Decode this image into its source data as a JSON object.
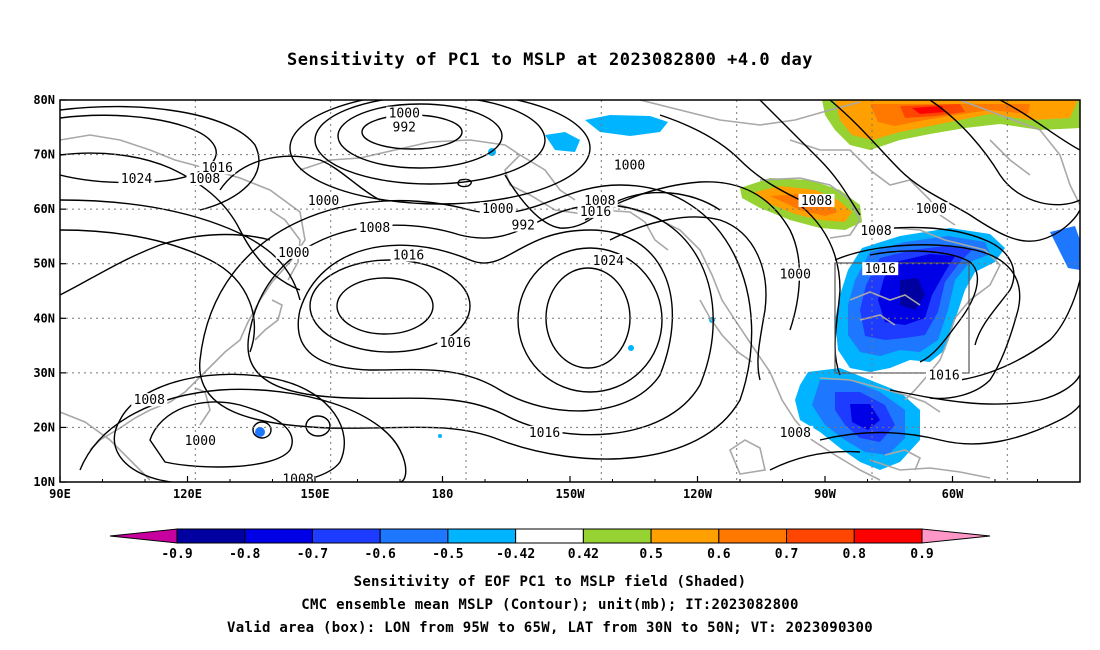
{
  "title": "Sensitivity of PC1 to MSLP at 2023082800 +4.0 day",
  "map": {
    "lat_labels": [
      "80N",
      "70N",
      "60N",
      "50N",
      "40N",
      "30N",
      "20N",
      "10N"
    ],
    "lon_labels": [
      "90E",
      "120E",
      "150E",
      "180",
      "150W",
      "120W",
      "90W",
      "60W"
    ],
    "contour_labels": [
      {
        "text": "1000",
        "lon": 171,
        "lat": 77.5
      },
      {
        "text": "992",
        "lon": 171,
        "lat": 75
      },
      {
        "text": "1024",
        "lon": 108,
        "lat": 65.5
      },
      {
        "text": "1016",
        "lon": 127,
        "lat": 67.5
      },
      {
        "text": "1008",
        "lon": 124,
        "lat": 65.5
      },
      {
        "text": "1000",
        "lon": 152,
        "lat": 61.5
      },
      {
        "text": "1000",
        "lon": 193,
        "lat": 60
      },
      {
        "text": "1000",
        "lon": -136,
        "lat": 68
      },
      {
        "text": "1008",
        "lon": -143,
        "lat": 61.5
      },
      {
        "text": "1016",
        "lon": -144,
        "lat": 59.5
      },
      {
        "text": "992",
        "lon": -161,
        "lat": 57
      },
      {
        "text": "1008",
        "lon": 164,
        "lat": 56.5
      },
      {
        "text": "1016",
        "lon": 172,
        "lat": 51.5
      },
      {
        "text": "1000",
        "lon": 145,
        "lat": 52
      },
      {
        "text": "1024",
        "lon": -141,
        "lat": 50.5
      },
      {
        "text": "1008",
        "lon": -92,
        "lat": 61.5
      },
      {
        "text": "1008",
        "lon": -78,
        "lat": 56
      },
      {
        "text": "1000",
        "lon": -65,
        "lat": 60
      },
      {
        "text": "1016",
        "lon": -77,
        "lat": 49
      },
      {
        "text": "1000",
        "lon": -97,
        "lat": 48
      },
      {
        "text": "1016",
        "lon": 183,
        "lat": 35.5
      },
      {
        "text": "1008",
        "lon": 111,
        "lat": 25
      },
      {
        "text": "1000",
        "lon": 123,
        "lat": 17.5
      },
      {
        "text": "1016",
        "lon": -156,
        "lat": 19
      },
      {
        "text": "1008",
        "lon": -97,
        "lat": 19
      },
      {
        "text": "1016",
        "lon": -62,
        "lat": 29.5
      },
      {
        "text": "1008",
        "lon": 146,
        "lat": 10.5
      }
    ],
    "box": {
      "lon_min": -95,
      "lon_max": -65,
      "lat_min": 30,
      "lat_max": 50
    }
  },
  "colorbar": {
    "labels": [
      "-0.9",
      "-0.8",
      "-0.7",
      "-0.6",
      "-0.5",
      "-0.42",
      "0.42",
      "0.5",
      "0.6",
      "0.7",
      "0.8",
      "0.9"
    ],
    "colors": [
      "#0000a0",
      "#0000e6",
      "#1e3cff",
      "#1e78ff",
      "#00b4ff",
      "#ffffff",
      "#96d232",
      "#ffa000",
      "#ff7800",
      "#ff4600",
      "#ff0000"
    ],
    "low_end": "#c800a0",
    "high_end": "#ff96c8"
  },
  "captions": {
    "line1": "Sensitivity of EOF PC1 to MSLP field (Shaded)",
    "line2": "CMC ensemble mean MSLP (Contour); unit(mb); IT:2023082800",
    "line3": "Valid area (box): LON from 95W to 65W, LAT from 30N to 50N; VT: 2023090300"
  }
}
